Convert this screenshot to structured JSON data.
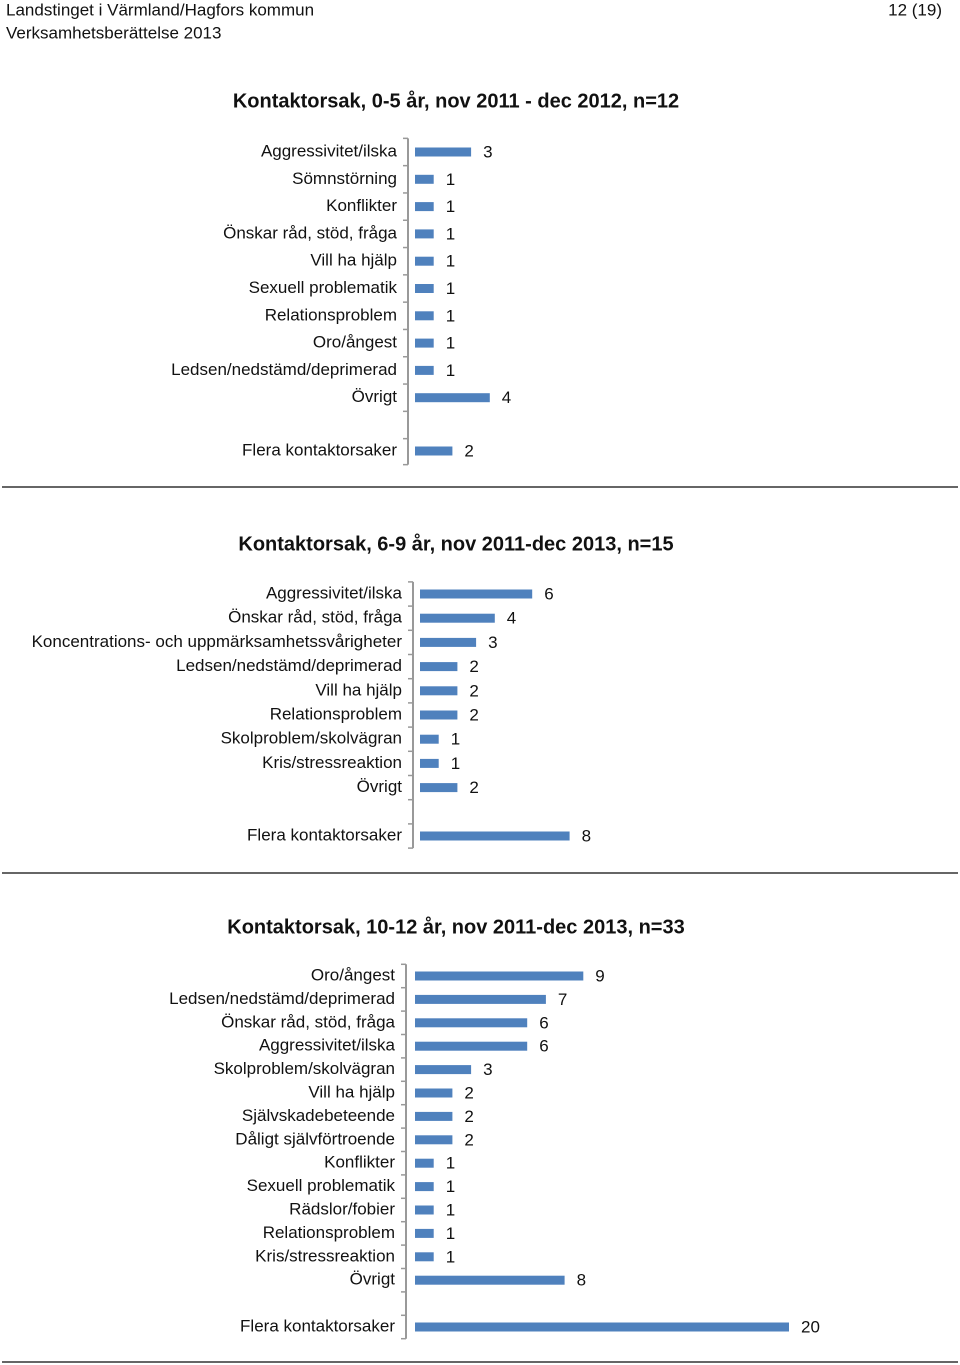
{
  "header": {
    "organisation": "Landstinget i Värmland/Hagfors kommun",
    "report": "Verksamhetsberättelse 2013",
    "page": "12 (19)"
  },
  "chart_data": [
    {
      "type": "bar",
      "title": "Kontaktorsak, 0-5 år, nov 2011 - dec 2012, n=12",
      "color": "#4f81bd",
      "categories": [
        "Aggressivitet/ilska",
        "Sömnstörning",
        "Konflikter",
        "Önskar råd, stöd, fråga",
        "Vill ha hjälp",
        "Sexuell problematik",
        "Relationsproblem",
        "Oro/ångest",
        "Ledsen/nedstämd/deprimerad",
        "Övrigt",
        "Flera kontaktorsaker"
      ],
      "values": [
        3,
        1,
        1,
        1,
        1,
        1,
        1,
        1,
        1,
        4,
        2
      ]
    },
    {
      "type": "bar",
      "title": "Kontaktorsak, 6-9 år, nov 2011-dec 2013, n=15",
      "color": "#4f81bd",
      "categories": [
        "Aggressivitet/ilska",
        "Önskar råd, stöd, fråga",
        "Koncentrations- och uppmärksamhetssvårigheter",
        "Ledsen/nedstämd/deprimerad",
        "Vill ha hjälp",
        "Relationsproblem",
        "Skolproblem/skolvägran",
        "Kris/stressreaktion",
        "Övrigt",
        "Flera kontaktorsaker"
      ],
      "values": [
        6,
        4,
        3,
        2,
        2,
        2,
        1,
        1,
        2,
        8
      ]
    },
    {
      "type": "bar",
      "title": "Kontaktorsak, 10-12 år, nov 2011-dec 2013, n=33",
      "color": "#4f81bd",
      "categories": [
        "Oro/ångest",
        "Ledsen/nedstämd/deprimerad",
        "Önskar råd, stöd, fråga",
        "Aggressivitet/ilska",
        "Skolproblem/skolvägran",
        "Vill ha hjälp",
        "Självskadebeteende",
        "Dåligt självförtroende",
        "Konflikter",
        "Sexuell problematik",
        "Rädslor/fobier",
        "Relationsproblem",
        "Kris/stressreaktion",
        "Övrigt",
        "Flera kontaktorsaker"
      ],
      "values": [
        9,
        7,
        6,
        6,
        3,
        2,
        2,
        2,
        1,
        1,
        1,
        1,
        1,
        8,
        20
      ]
    }
  ]
}
